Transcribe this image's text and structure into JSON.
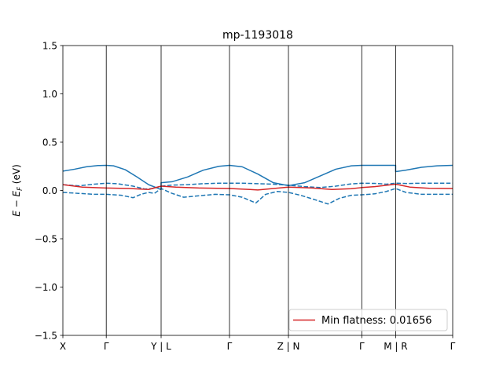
{
  "chart_data": {
    "type": "line",
    "title": "mp-1193018",
    "xlabel": "",
    "ylabel": "E − E_F (eV)",
    "ylabel_parts": {
      "main": "E − E",
      "sub": "F",
      "tail": " (eV)"
    },
    "xlim": [
      0,
      10
    ],
    "ylim": [
      -1.5,
      1.5
    ],
    "yticks": [
      -1.5,
      -1.0,
      -0.5,
      0.0,
      0.5,
      1.0,
      1.5
    ],
    "ytick_labels": [
      "−1.5",
      "−1.0",
      "−0.5",
      "0.0",
      "0.5",
      "1.0",
      "1.5"
    ],
    "xticks": [
      0,
      1.1129,
      2.5202,
      4.2742,
      5.7863,
      7.6673,
      8.5363,
      10
    ],
    "xtick_labels": [
      "X",
      "Γ",
      "Y | L",
      "Γ",
      "Z | N",
      "Γ",
      "M | R",
      "Γ"
    ],
    "grid": false,
    "legend": {
      "placement": "lower-right",
      "entries": [
        "Min flatness: 0.01656"
      ]
    },
    "series": [
      {
        "style": "solid",
        "color": "#1f77b4",
        "x": [
          0,
          0.3,
          0.6,
          0.9,
          1.1129,
          1.3,
          1.6,
          1.9,
          2.2,
          2.5202,
          2.5202,
          2.8,
          3.2,
          3.6,
          4.0,
          4.2742,
          4.6,
          5.0,
          5.4,
          5.7863,
          6.2,
          6.6,
          7.0,
          7.4,
          7.6673,
          8.0,
          8.5363,
          8.5363,
          8.8,
          9.2,
          9.6,
          10
        ],
        "y": [
          0.2,
          0.22,
          0.245,
          0.258,
          0.26,
          0.255,
          0.215,
          0.14,
          0.06,
          0.01,
          0.08,
          0.09,
          0.14,
          0.21,
          0.25,
          0.26,
          0.245,
          0.17,
          0.08,
          0.05,
          0.08,
          0.15,
          0.22,
          0.255,
          0.26,
          0.26,
          0.26,
          0.195,
          0.21,
          0.24,
          0.255,
          0.26
        ]
      },
      {
        "style": "dashed",
        "color": "#1f77b4",
        "x": [
          0,
          0.4,
          0.8,
          1.1129,
          1.4,
          1.8,
          2.1,
          2.3,
          2.5202,
          2.8,
          3.2,
          3.6,
          4.0,
          4.2742,
          4.6,
          5.0,
          5.4,
          5.7863,
          6.2,
          6.6,
          7.0,
          7.4,
          7.6673,
          8.0,
          8.3,
          8.5363,
          8.8,
          9.2,
          9.6,
          10
        ],
        "y": [
          0.06,
          0.048,
          0.065,
          0.075,
          0.07,
          0.045,
          0.015,
          0.02,
          0.045,
          0.055,
          0.06,
          0.07,
          0.075,
          0.075,
          0.075,
          0.07,
          0.065,
          0.055,
          0.04,
          0.03,
          0.045,
          0.068,
          0.075,
          0.073,
          0.065,
          0.075,
          0.072,
          0.075,
          0.075,
          0.075
        ]
      },
      {
        "style": "dashed",
        "color": "#1f77b4",
        "x": [
          0,
          0.4,
          0.8,
          1.1129,
          1.5,
          1.8,
          2.0,
          2.2,
          2.35,
          2.5202,
          2.8,
          3.1,
          3.5,
          3.9,
          4.2742,
          4.6,
          4.95,
          5.2,
          5.5,
          5.7863,
          6.1,
          6.5,
          6.8,
          7.1,
          7.4,
          7.6673,
          8.0,
          8.3,
          8.5363,
          8.8,
          9.2,
          9.6,
          10
        ],
        "y": [
          -0.02,
          -0.03,
          -0.04,
          -0.04,
          -0.05,
          -0.075,
          -0.04,
          -0.02,
          -0.03,
          0.02,
          -0.03,
          -0.07,
          -0.055,
          -0.04,
          -0.045,
          -0.07,
          -0.13,
          -0.04,
          -0.01,
          -0.02,
          -0.05,
          -0.1,
          -0.14,
          -0.08,
          -0.05,
          -0.045,
          -0.035,
          -0.01,
          0.02,
          -0.02,
          -0.04,
          -0.04,
          -0.04
        ]
      },
      {
        "name": "Min flatness: 0.01656",
        "style": "solid",
        "color": "#d62728",
        "x": [
          0,
          0.5,
          1.1129,
          1.7,
          2.2,
          2.5202,
          2.9,
          3.5,
          4.2742,
          4.8,
          5.0,
          5.4,
          5.7863,
          6.4,
          6.9,
          7.4,
          7.6673,
          8.0,
          8.5363,
          8.9,
          9.4,
          10
        ],
        "y": [
          0.06,
          0.035,
          0.025,
          0.02,
          0.01,
          0.045,
          0.035,
          0.025,
          0.02,
          0.01,
          0.005,
          0.02,
          0.035,
          0.025,
          0.01,
          0.018,
          0.03,
          0.04,
          0.065,
          0.035,
          0.022,
          0.02
        ]
      }
    ]
  }
}
